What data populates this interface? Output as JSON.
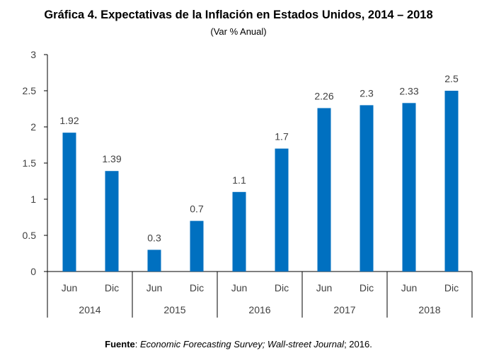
{
  "chart_data": {
    "type": "bar",
    "title": "Gráfica 4. Expectativas de la Inflación en Estados Unidos, 2014 – 2018",
    "subtitle": "(Var % Anual)",
    "categories": [
      "Jun",
      "Dic",
      "Jun",
      "Dic",
      "Jun",
      "Dic",
      "Jun",
      "Dic",
      "Jun",
      "Dic"
    ],
    "groups": [
      "2014",
      "2015",
      "2016",
      "2017",
      "2018"
    ],
    "values": [
      1.92,
      1.39,
      0.3,
      0.7,
      1.1,
      1.7,
      2.26,
      2.3,
      2.33,
      2.5
    ],
    "data_labels": [
      "1.92",
      "1.39",
      "0.3",
      "0.7",
      "1.1",
      "1.7",
      "2.26",
      "2.3",
      "2.33",
      "2.5"
    ],
    "yticks": [
      "0",
      "0.5",
      "1",
      "1.5",
      "2",
      "2.5",
      "3"
    ],
    "ylim": [
      0,
      3
    ],
    "grid": false,
    "bar_color": "#0070c0"
  },
  "source": {
    "label": "Fuente",
    "parts": [
      "Economic Forecasting Survey; Wall-street Journal",
      "; 2016."
    ]
  }
}
